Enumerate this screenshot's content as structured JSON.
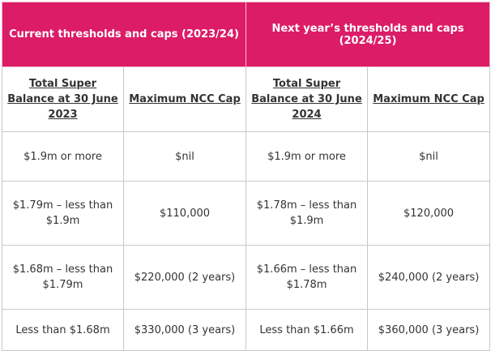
{
  "table": {
    "group_headers": [
      "Current thresholds and caps (2023/24)",
      "Next year’s thresholds and caps (2024/25)"
    ],
    "sub_headers": [
      "Total Super Balance at 30 June 2023",
      "Maximum NCC Cap",
      "Total Super Balance at 30 June 2024",
      "Maximum NCC Cap"
    ],
    "rows": [
      [
        "$1.9m or more",
        "$nil",
        "$1.9m or more",
        "$nil"
      ],
      [
        "$1.79m – less than $1.9m",
        "$110,000",
        "$1.78m – less than $1.9m",
        "$120,000"
      ],
      [
        "$1.68m – less than $1.79m",
        "$220,000 (2 years)",
        "$1.66m – less than $1.78m",
        "$240,000 (2 years)"
      ],
      [
        "Less than $1.68m",
        "$330,000 (3 years)",
        "Less than $1.66m",
        "$360,000 (3 years)"
      ]
    ]
  },
  "colors": {
    "header_bg": "#dc1c67",
    "header_text": "#ffffff",
    "body_text": "#333333",
    "border": "#c8c8c8"
  }
}
